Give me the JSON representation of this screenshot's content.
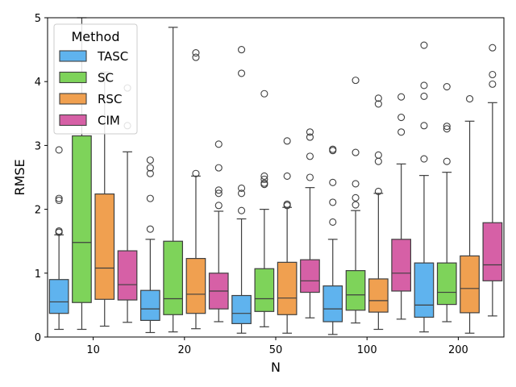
{
  "chart_data": {
    "type": "boxplot",
    "xlabel": "N",
    "ylabel": "RMSE",
    "ylim": [
      0,
      5
    ],
    "yticks": [
      0,
      1,
      2,
      3,
      4,
      5
    ],
    "categories": [
      "10",
      "20",
      "50",
      "100",
      "200"
    ],
    "legend": {
      "title": "Method",
      "placement": "upper-left"
    },
    "series": [
      {
        "name": "TASC",
        "color": "#5fb3ee",
        "boxes": [
          {
            "q1": 0.37,
            "median": 0.55,
            "q3": 0.9,
            "whislo": 0.12,
            "whishi": 1.6,
            "fliers": [
              1.64,
              1.66,
              2.14,
              2.17,
              2.93
            ]
          },
          {
            "q1": 0.26,
            "median": 0.44,
            "q3": 0.73,
            "whislo": 0.07,
            "whishi": 1.53,
            "fliers": [
              1.69,
              2.17,
              2.56,
              2.65,
              2.77
            ]
          },
          {
            "q1": 0.21,
            "median": 0.37,
            "q3": 0.65,
            "whislo": 0.06,
            "whishi": 1.85,
            "fliers": [
              1.98,
              2.25,
              2.33,
              4.13,
              4.5
            ]
          },
          {
            "q1": 0.24,
            "median": 0.44,
            "q3": 0.8,
            "whislo": 0.04,
            "whishi": 1.53,
            "fliers": [
              1.8,
              2.11,
              2.42,
              2.92,
              2.94
            ]
          },
          {
            "q1": 0.31,
            "median": 0.5,
            "q3": 1.16,
            "whislo": 0.08,
            "whishi": 2.53,
            "fliers": [
              2.79,
              3.31,
              3.77,
              3.94,
              4.57
            ]
          }
        ]
      },
      {
        "name": "SC",
        "color": "#7ed35a",
        "boxes": [
          {
            "q1": 0.54,
            "median": 1.48,
            "q3": 3.15,
            "whislo": 0.12,
            "whishi": 5.0,
            "fliers": []
          },
          {
            "q1": 0.35,
            "median": 0.6,
            "q3": 1.5,
            "whislo": 0.08,
            "whishi": 4.85,
            "fliers": []
          },
          {
            "q1": 0.4,
            "median": 0.6,
            "q3": 1.07,
            "whislo": 0.16,
            "whishi": 2.0,
            "fliers": [
              2.39,
              2.41,
              2.47,
              2.52,
              3.81
            ]
          },
          {
            "q1": 0.42,
            "median": 0.66,
            "q3": 1.04,
            "whislo": 0.22,
            "whishi": 1.98,
            "fliers": [
              2.07,
              2.18,
              2.4,
              2.89,
              4.02
            ]
          },
          {
            "q1": 0.51,
            "median": 0.7,
            "q3": 1.16,
            "whislo": 0.24,
            "whishi": 2.58,
            "fliers": [
              2.75,
              3.26,
              3.3,
              3.92
            ]
          }
        ]
      },
      {
        "name": "RSC",
        "color": "#f0a050",
        "boxes": [
          {
            "q1": 0.59,
            "median": 1.08,
            "q3": 2.24,
            "whislo": 0.17,
            "whishi": 4.15,
            "fliers": []
          },
          {
            "q1": 0.37,
            "median": 0.67,
            "q3": 1.23,
            "whislo": 0.13,
            "whishi": 2.52,
            "fliers": [
              2.56,
              4.38,
              4.45
            ]
          },
          {
            "q1": 0.35,
            "median": 0.61,
            "q3": 1.17,
            "whislo": 0.06,
            "whishi": 2.03,
            "fliers": [
              2.06,
              2.08,
              2.52,
              3.07
            ]
          },
          {
            "q1": 0.39,
            "median": 0.57,
            "q3": 0.91,
            "whislo": 0.12,
            "whishi": 2.25,
            "fliers": [
              2.28,
              2.75,
              2.85,
              3.65,
              3.74
            ]
          },
          {
            "q1": 0.38,
            "median": 0.76,
            "q3": 1.27,
            "whislo": 0.06,
            "whishi": 3.38,
            "fliers": [
              3.73
            ]
          }
        ]
      },
      {
        "name": "CIM",
        "color": "#d660a6",
        "boxes": [
          {
            "q1": 0.58,
            "median": 0.82,
            "q3": 1.35,
            "whislo": 0.23,
            "whishi": 2.9,
            "fliers": [
              3.31,
              3.9
            ]
          },
          {
            "q1": 0.44,
            "median": 0.72,
            "q3": 1.0,
            "whislo": 0.24,
            "whishi": 1.97,
            "fliers": [
              2.06,
              2.25,
              2.3,
              2.65,
              3.02
            ]
          },
          {
            "q1": 0.7,
            "median": 0.88,
            "q3": 1.21,
            "whislo": 0.3,
            "whishi": 2.34,
            "fliers": [
              2.5,
              2.83,
              3.13,
              3.21
            ]
          },
          {
            "q1": 0.72,
            "median": 1.0,
            "q3": 1.53,
            "whislo": 0.28,
            "whishi": 2.71,
            "fliers": [
              3.21,
              3.44,
              3.76
            ]
          },
          {
            "q1": 0.88,
            "median": 1.13,
            "q3": 1.79,
            "whislo": 0.33,
            "whishi": 3.67,
            "fliers": [
              3.96,
              4.11,
              4.53
            ]
          }
        ]
      }
    ]
  }
}
